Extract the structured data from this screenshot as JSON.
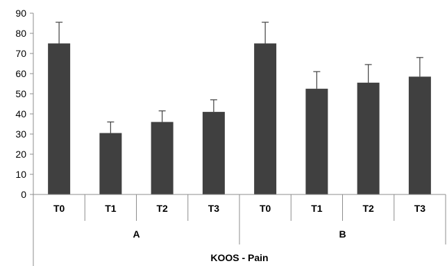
{
  "chart_data": {
    "type": "bar",
    "title": "",
    "ylabel": "",
    "xlabel": "KOOS - Pain",
    "ylim": [
      0,
      90
    ],
    "yticks": [
      0,
      10,
      20,
      30,
      40,
      50,
      60,
      70,
      80,
      90
    ],
    "grid": false,
    "groups": [
      {
        "label": "A",
        "categories": [
          "T0",
          "T1",
          "T2",
          "T3"
        ],
        "values": [
          75,
          30.5,
          36,
          41
        ],
        "errors": [
          10.5,
          5.5,
          5.5,
          6
        ]
      },
      {
        "label": "B",
        "categories": [
          "T0",
          "T1",
          "T2",
          "T3"
        ],
        "values": [
          75,
          52.5,
          55.5,
          58.5
        ],
        "errors": [
          10.5,
          8.5,
          9,
          9.5
        ]
      }
    ],
    "bar_color": "#404040",
    "axis_color": "#8c8c8c"
  }
}
